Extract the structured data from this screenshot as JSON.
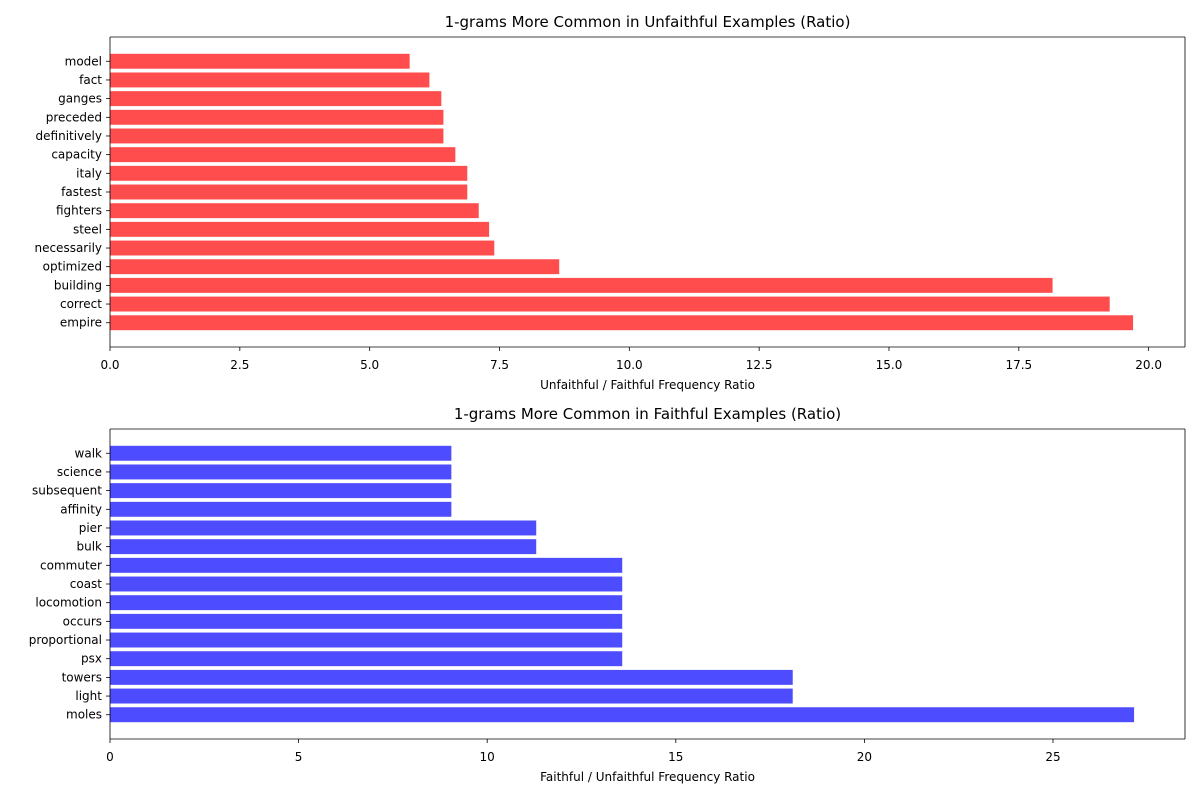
{
  "colors": {
    "unfaithful": "#ff4d4d",
    "faithful": "#4d4dff",
    "axis": "#000000"
  },
  "chart_data": [
    {
      "type": "bar",
      "orientation": "horizontal",
      "title": "1-grams More Common in Unfaithful Examples (Ratio)",
      "xlabel": "Unfaithful / Faithful Frequency Ratio",
      "ylabel": "",
      "xlim": [
        0,
        20.7
      ],
      "xticks": [
        0.0,
        2.5,
        5.0,
        7.5,
        10.0,
        12.5,
        15.0,
        17.5,
        20.0
      ],
      "xtick_labels": [
        "0.0",
        "2.5",
        "5.0",
        "7.5",
        "10.0",
        "12.5",
        "15.0",
        "17.5",
        "20.0"
      ],
      "categories": [
        "empire",
        "correct",
        "building",
        "optimized",
        "necessarily",
        "steel",
        "fighters",
        "fastest",
        "italy",
        "capacity",
        "definitively",
        "preceded",
        "ganges",
        "fact",
        "model"
      ],
      "values": [
        19.7,
        19.25,
        18.15,
        8.65,
        7.4,
        7.3,
        7.1,
        6.88,
        6.88,
        6.65,
        6.42,
        6.42,
        6.38,
        6.15,
        5.77
      ],
      "color": "#ff4d4d",
      "grid": false
    },
    {
      "type": "bar",
      "orientation": "horizontal",
      "title": "1-grams More Common in Faithful Examples (Ratio)",
      "xlabel": "Faithful / Unfaithful Frequency Ratio",
      "ylabel": "",
      "xlim": [
        0,
        28.5
      ],
      "xticks": [
        0,
        5,
        10,
        15,
        20,
        25
      ],
      "xtick_labels": [
        "0",
        "5",
        "10",
        "15",
        "20",
        "25"
      ],
      "categories": [
        "moles",
        "light",
        "towers",
        "psx",
        "proportional",
        "occurs",
        "locomotion",
        "coast",
        "commuter",
        "bulk",
        "pier",
        "affinity",
        "subsequent",
        "science",
        "walk"
      ],
      "values": [
        27.15,
        18.1,
        18.1,
        13.58,
        13.58,
        13.58,
        13.58,
        13.58,
        13.58,
        11.3,
        11.3,
        9.05,
        9.05,
        9.05,
        9.05
      ],
      "color": "#4d4dff",
      "grid": false
    }
  ]
}
